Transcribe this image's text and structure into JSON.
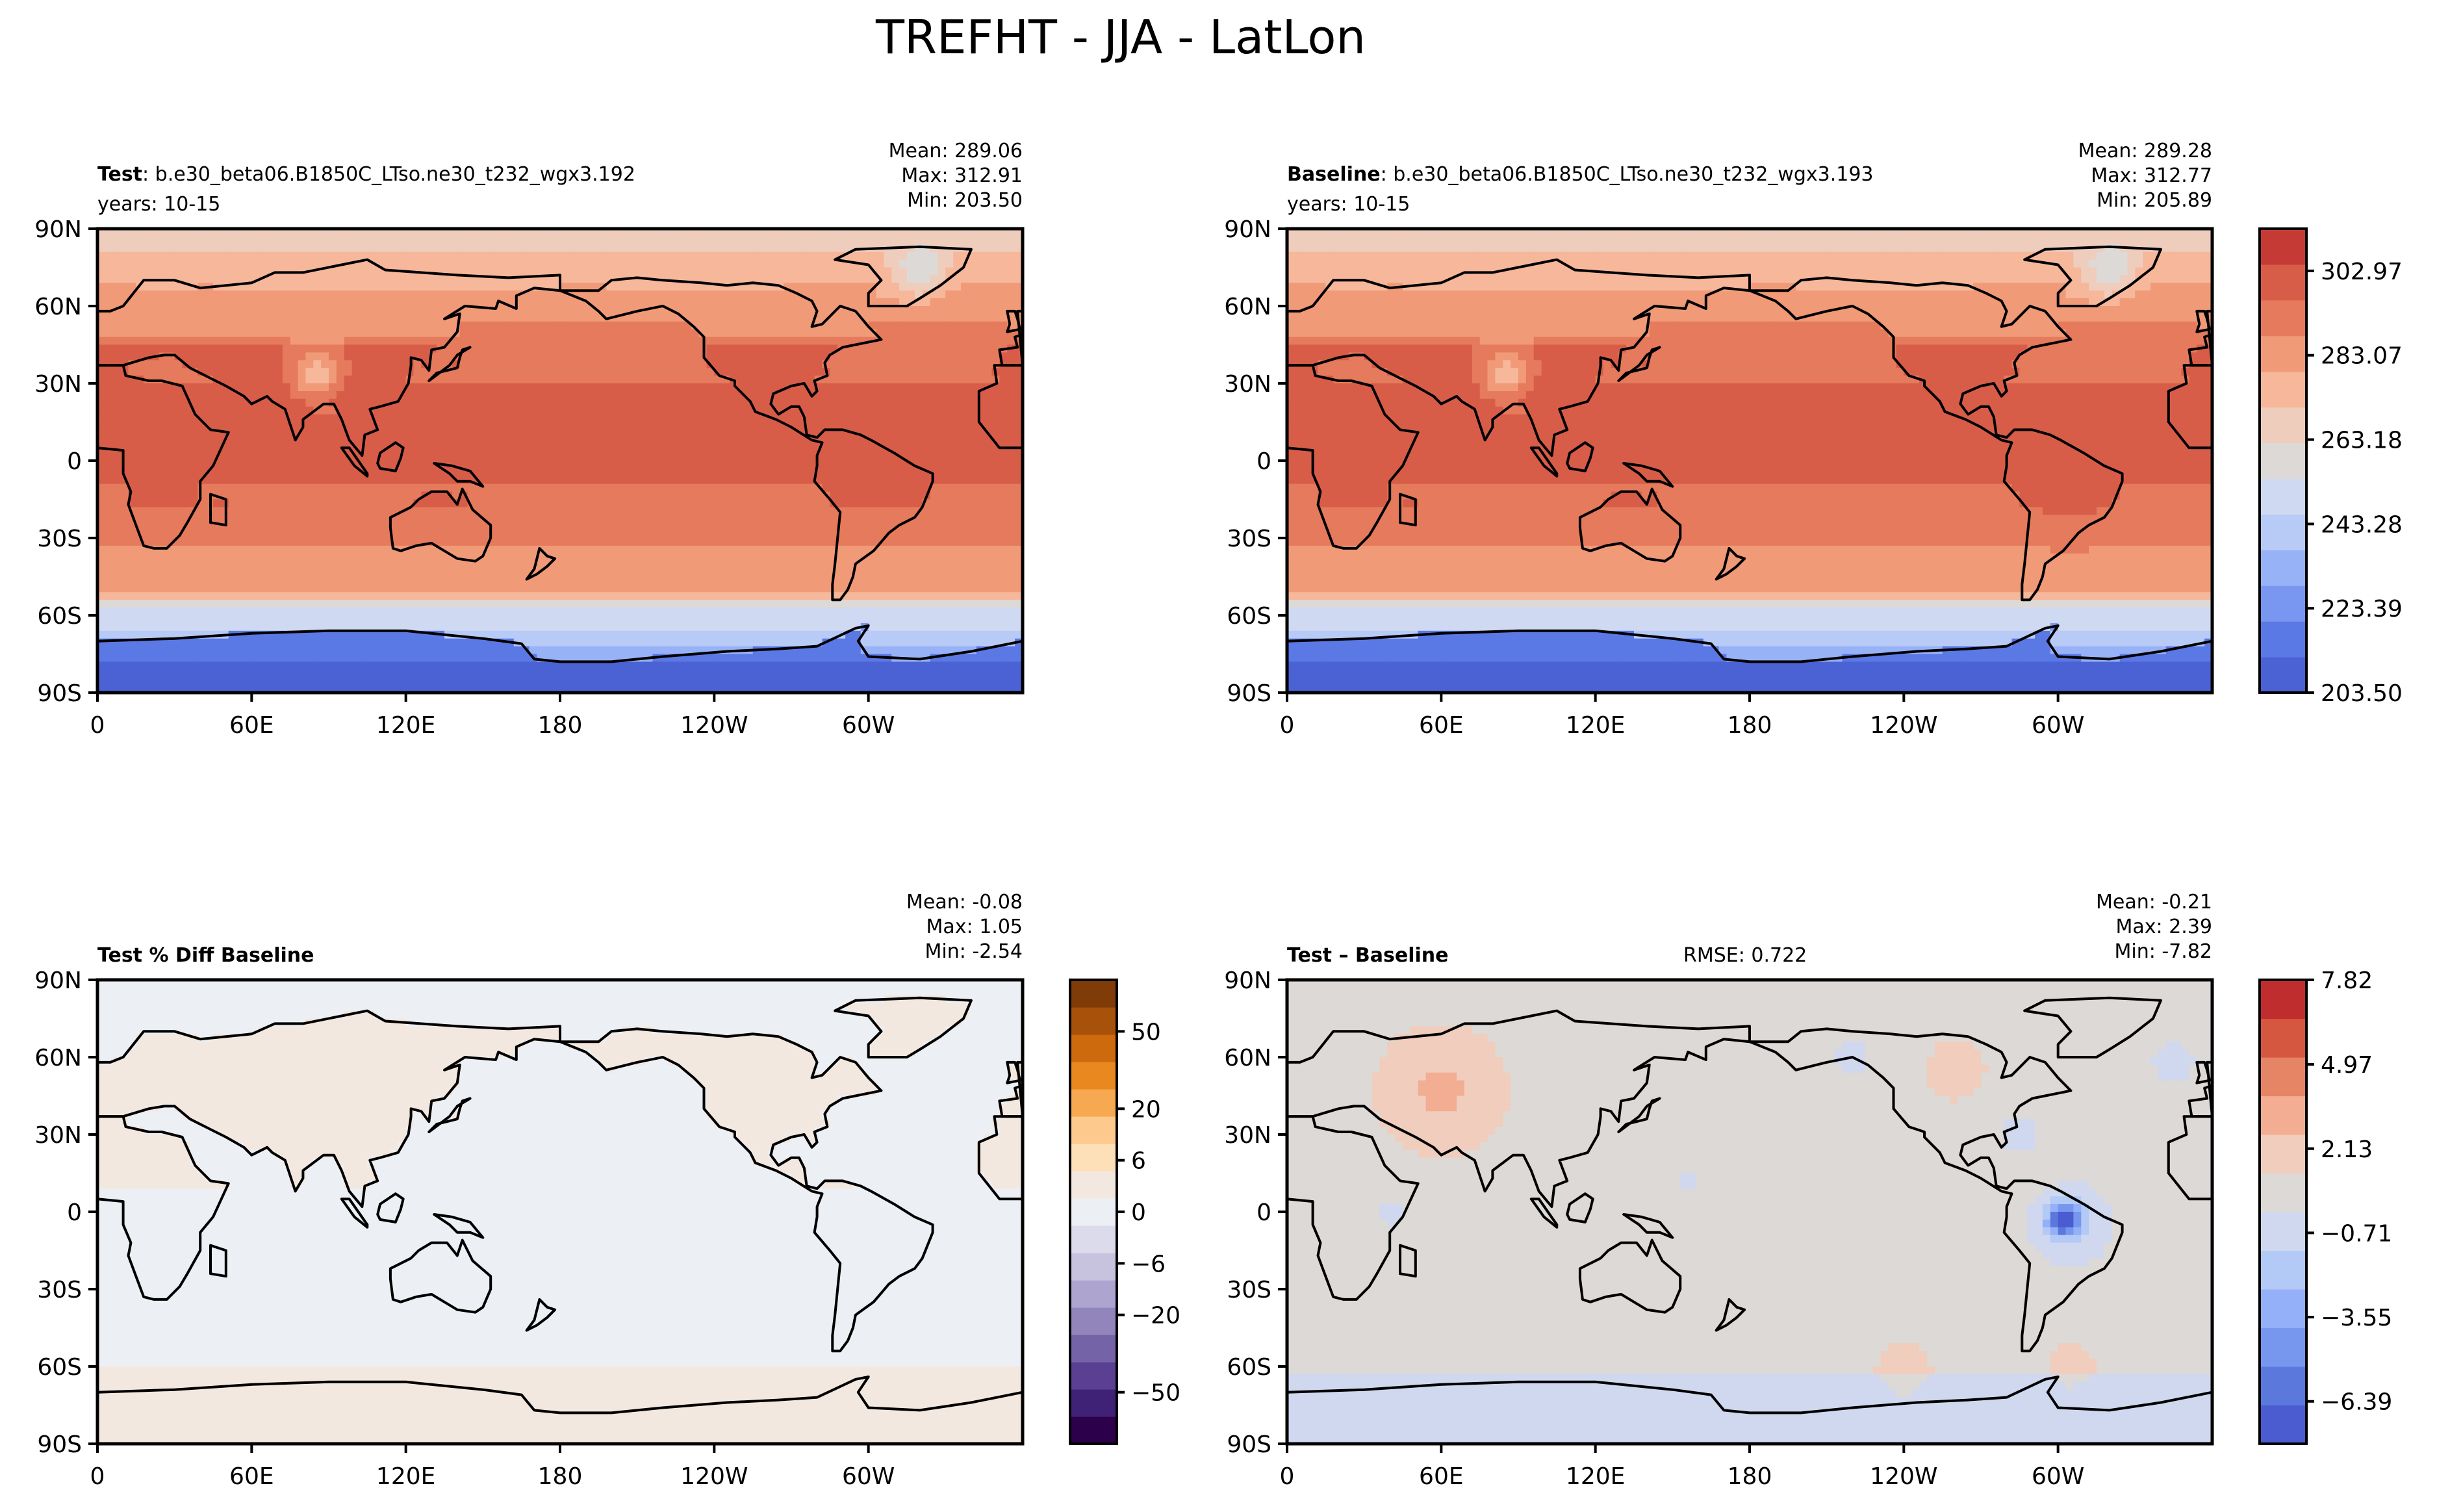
{
  "title": "TREFHT - JJA - LatLon",
  "colors": {
    "frame": "#000000",
    "coast": "#000000",
    "warm_seq": [
      "#ddd9d6",
      "#efcdbd",
      "#f6b79b",
      "#f09a78",
      "#e57a5c",
      "#d85d48",
      "#c53a35"
    ],
    "cool_seq": [
      "#4a62d4",
      "#5b79e4",
      "#7996f0",
      "#98b2f7",
      "#b8cbf7",
      "#cfd9f2"
    ],
    "diff_warm": [
      "#ddd9d6",
      "#f0cdbd",
      "#f3ad93",
      "#e68466",
      "#d5573f",
      "#bf2d2f"
    ],
    "diff_cool": [
      "#cfd8ee",
      "#b3c9f6",
      "#93b0f8",
      "#7796ee",
      "#5b78dd",
      "#4a5cd0"
    ],
    "pct_pos": [
      "#f3e8df",
      "#fde0b8",
      "#fdc98d",
      "#f7a952",
      "#e8881f",
      "#ce6a0e",
      "#a8510b",
      "#7f3b08"
    ],
    "pct_neg": [
      "#eceff4",
      "#dcdbeb",
      "#c7c3df",
      "#ada5cf",
      "#9185bb",
      "#7563a7",
      "#5a3f92",
      "#3f2276",
      "#2d004b"
    ]
  },
  "chart_data": [
    {
      "type": "heatmap",
      "panel": "test",
      "title_bold": "Test",
      "title_rest": ": b.e30_beta06.B1850C_LTso.ne30_t232_wgx3.192",
      "subtitle": "years: 10-15",
      "stats": {
        "mean": "Mean: 289.06",
        "max": "Max: 312.91",
        "min": "Min: 203.50"
      },
      "x_ticks": [
        "0",
        "60E",
        "120E",
        "180",
        "120W",
        "60W"
      ],
      "y_ticks": [
        "90N",
        "60N",
        "30N",
        "0",
        "30S",
        "60S",
        "90S"
      ],
      "lon_range": [
        0,
        360
      ],
      "lat_range": [
        -90,
        90
      ],
      "value_range": [
        203.5,
        312.91
      ],
      "colormap": "temperature"
    },
    {
      "type": "heatmap",
      "panel": "baseline",
      "title_bold": "Baseline",
      "title_rest": ": b.e30_beta06.B1850C_LTso.ne30_t232_wgx3.193",
      "subtitle": "years: 10-15",
      "stats": {
        "mean": "Mean: 289.28",
        "max": "Max: 312.77",
        "min": "Min: 205.89"
      },
      "x_ticks": [
        "0",
        "60E",
        "120E",
        "180",
        "120W",
        "60W"
      ],
      "y_ticks": [
        "90N",
        "60N",
        "30N",
        "0",
        "30S",
        "60S",
        "90S"
      ],
      "lon_range": [
        0,
        360
      ],
      "lat_range": [
        -90,
        90
      ],
      "value_range": [
        205.89,
        312.77
      ],
      "colormap": "temperature",
      "colorbar": {
        "ticks": [
          "302.97",
          "283.07",
          "263.18",
          "243.28",
          "223.39",
          "203.50"
        ],
        "tick_values": [
          302.97,
          283.07,
          263.18,
          243.28,
          223.39,
          203.5
        ],
        "range": [
          203.5,
          312.91
        ]
      }
    },
    {
      "type": "heatmap",
      "panel": "pct_diff",
      "title_bold": "Test % Diff Baseline",
      "title_rest": "",
      "subtitle": "",
      "stats": {
        "mean": "Mean: -0.08",
        "max": "Max:  1.05",
        "min": "Min: -2.54"
      },
      "x_ticks": [
        "0",
        "60E",
        "120E",
        "180",
        "120W",
        "60W"
      ],
      "y_ticks": [
        "90N",
        "60N",
        "30N",
        "0",
        "30S",
        "60S",
        "90S"
      ],
      "lon_range": [
        0,
        360
      ],
      "lat_range": [
        -90,
        90
      ],
      "value_range": [
        -2.54,
        1.05
      ],
      "colormap": "percent",
      "colorbar": {
        "ticks": [
          "50",
          "20",
          "6",
          "0",
          "−6",
          "−20",
          "−50"
        ],
        "levels": [
          -100,
          -75,
          -50,
          -40,
          -30,
          -20,
          -10,
          -6,
          -3,
          0,
          3,
          6,
          10,
          20,
          30,
          40,
          50,
          75,
          100
        ]
      }
    },
    {
      "type": "heatmap",
      "panel": "diff",
      "title_bold": "Test – Baseline",
      "title_rest": "",
      "subtitle": "",
      "rmse": "RMSE: 0.722",
      "stats": {
        "mean": "Mean: -0.21",
        "max": "Max:  2.39",
        "min": "Min: -7.82"
      },
      "x_ticks": [
        "0",
        "60E",
        "120E",
        "180",
        "120W",
        "60W"
      ],
      "y_ticks": [
        "90N",
        "60N",
        "30N",
        "0",
        "30S",
        "60S",
        "90S"
      ],
      "lon_range": [
        0,
        360
      ],
      "lat_range": [
        -90,
        90
      ],
      "value_range": [
        -7.82,
        2.39
      ],
      "colormap": "difference",
      "colorbar": {
        "ticks": [
          "7.82",
          "4.97",
          "2.13",
          "−0.71",
          "−3.55",
          "−6.39"
        ],
        "tick_values": [
          7.82,
          4.97,
          2.13,
          -0.71,
          -3.55,
          -6.39
        ],
        "range": [
          -7.82,
          7.82
        ]
      }
    }
  ]
}
